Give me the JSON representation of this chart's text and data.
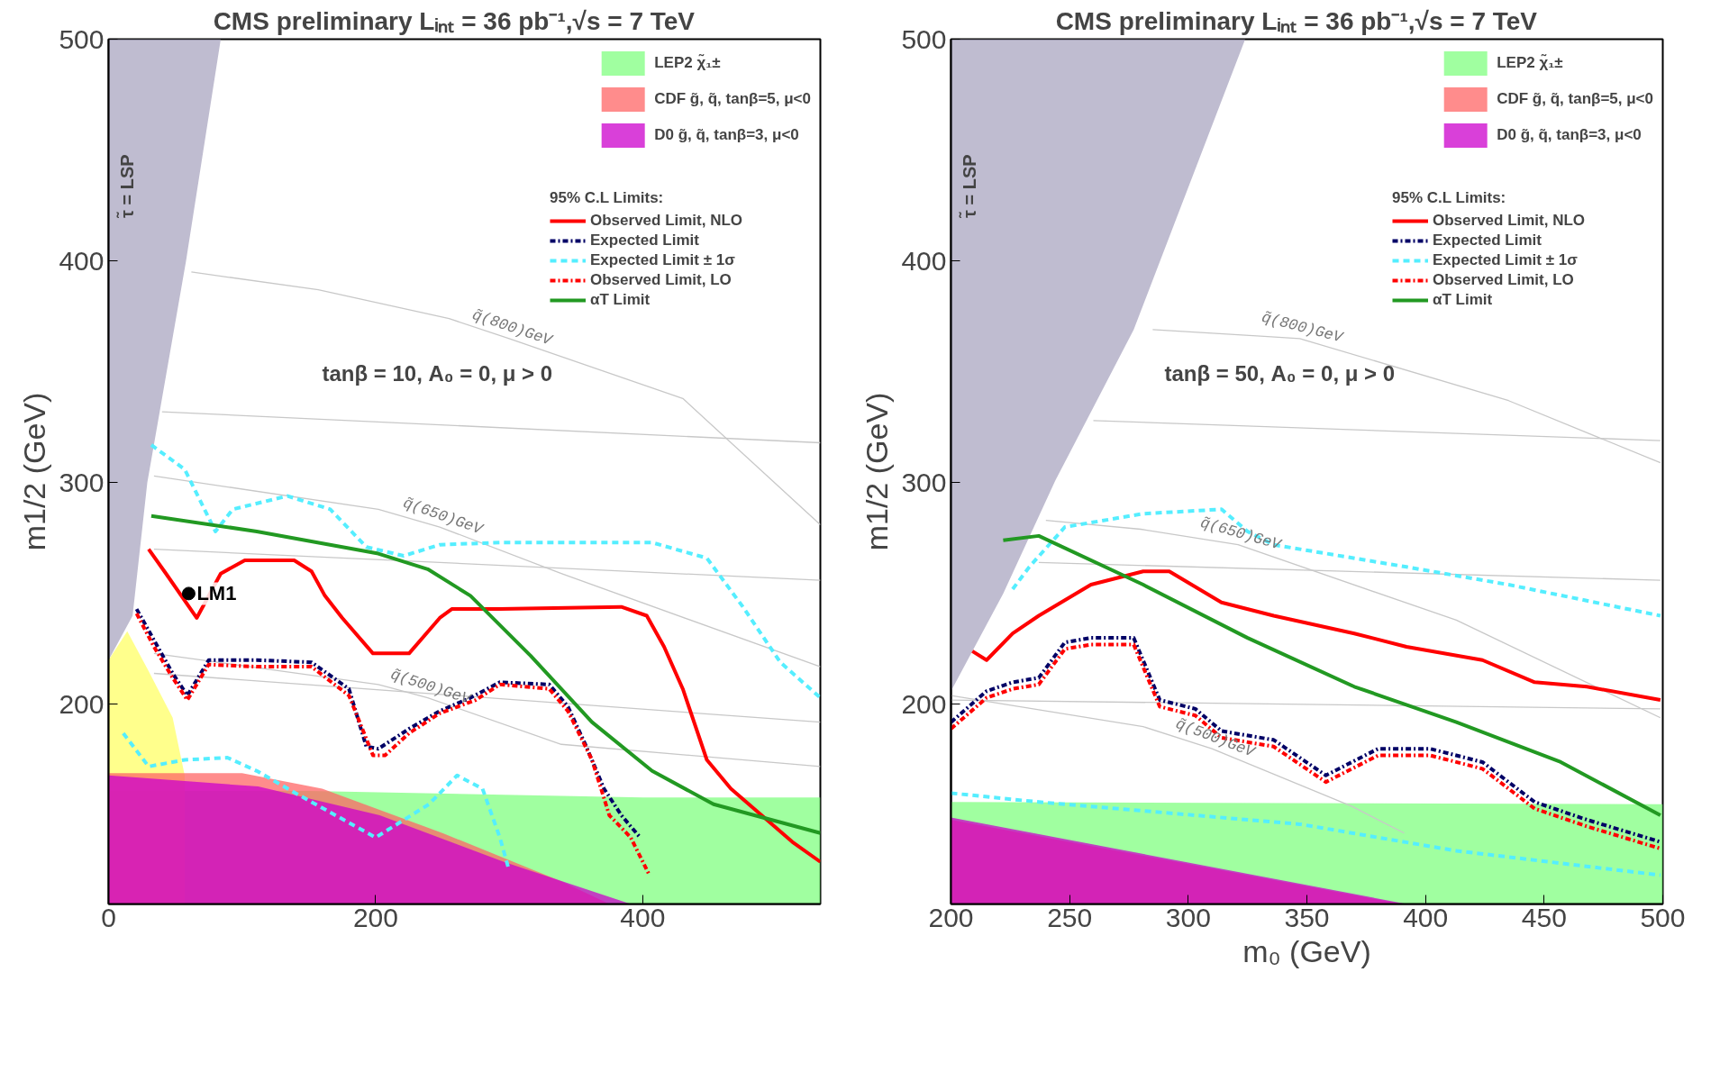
{
  "chart_data": [
    {
      "type": "line",
      "title": "CMS preliminary    Lᵢₙₜ = 36 pb⁻¹,√s = 7 TeV",
      "ylabel": "m1/2 (GeV)",
      "legend_title": "95% C.L Limits:",
      "xlim": [
        0,
        533
      ],
      "ylim": [
        110,
        500
      ],
      "xticks": [
        0,
        200,
        400
      ],
      "yticks": [
        200,
        300,
        400,
        500
      ],
      "legend": "top right",
      "annotations": [
        "tanβ = 10, A₀ = 0, μ > 0",
        "τ̃ = LSP"
      ],
      "series": [
        {
          "type": "area",
          "color": "#a9a6c0",
          "x": [
            0,
            0,
            18,
            29,
            58,
            84
          ],
          "values": [
            500,
            220,
            240,
            300,
            400,
            500
          ]
        },
        {
          "type": "area",
          "name": "LEP2 χ̃₁±",
          "color": "#80ff80",
          "x": [
            0,
            150,
            400,
            533
          ],
          "values": [
            161,
            161,
            158,
            158
          ]
        },
        {
          "type": "area",
          "color": "#ffff66",
          "x": [
            0,
            14,
            30,
            48,
            57
          ],
          "values": [
            220,
            233,
            215,
            194,
            168
          ]
        },
        {
          "type": "area",
          "name": "CDF g̃, q̃, tanβ=5, μ<0",
          "color": "#ff6666",
          "x": [
            0,
            100,
            160,
            250,
            340,
            375
          ],
          "values": [
            169,
            169,
            162,
            142,
            120,
            110
          ]
        },
        {
          "type": "area",
          "name": "D0 g̃, q̃, tanβ=3, μ<0",
          "color": "#cc00cc",
          "x": [
            0,
            112,
            203,
            296,
            391
          ],
          "values": [
            168,
            163,
            150,
            129,
            110
          ]
        },
        {
          "color": "#c8c8c8",
          "x": [
            40,
            533
          ],
          "values": [
            332,
            318
          ]
        },
        {
          "name": "q̃(800)GeV",
          "color": "#c8c8c8",
          "x": [
            62,
            157,
            255,
            300,
            430,
            533
          ],
          "values": [
            395,
            387,
            374,
            365,
            338,
            281
          ]
        },
        {
          "name": "q̃(650)GeV",
          "color": "#c8c8c8",
          "x": [
            34,
            202,
            248,
            339,
            533
          ],
          "values": [
            303,
            288,
            280,
            259,
            217
          ]
        },
        {
          "color": "#c8c8c8",
          "x": [
            34,
            533
          ],
          "values": [
            270,
            256
          ]
        },
        {
          "name": "q̃(500)GeV",
          "color": "#c8c8c8",
          "x": [
            34,
            202,
            239,
            339,
            533
          ],
          "values": [
            223,
            209,
            203,
            182,
            172
          ]
        },
        {
          "color": "#c8c8c8",
          "x": [
            34,
            533
          ],
          "values": [
            214,
            192
          ]
        },
        {
          "name": "Observed Limit, NLO",
          "color": "#ff0000",
          "line_style": "solid",
          "x": [
            30,
            43,
            66,
            84,
            102,
            139,
            152,
            162,
            175,
            198,
            225,
            248,
            257,
            293,
            384,
            403,
            416,
            430,
            448,
            466,
            489,
            512,
            533
          ],
          "values": [
            270,
            259,
            239,
            259,
            265,
            265,
            260,
            249,
            239,
            223,
            223,
            239,
            243,
            243,
            244,
            240,
            226,
            207,
            175,
            162,
            150,
            138,
            129
          ]
        },
        {
          "name": "Expected Limit",
          "color": "#000066",
          "line_style": "dotted",
          "x": [
            21,
            34,
            48,
            59,
            75,
            111,
            152,
            180,
            193,
            202,
            225,
            248,
            271,
            293,
            330,
            344,
            357,
            371,
            384,
            398
          ],
          "values": [
            243,
            229,
            214,
            204,
            220,
            220,
            219,
            207,
            181,
            180,
            189,
            197,
            203,
            210,
            209,
            199,
            182,
            162,
            150,
            140
          ]
        },
        {
          "name": "Expected Limit ± 1σ",
          "color": "#55eeff",
          "line_style": "dashed",
          "x": [
            32,
            57,
            80,
            93,
            134,
            166,
            193,
            221,
            248,
            293,
            407,
            448,
            475,
            503,
            533
          ],
          "values": [
            317,
            306,
            278,
            288,
            294,
            288,
            271,
            267,
            272,
            273,
            273,
            266,
            244,
            219,
            203
          ]
        },
        {
          "color": "#55eeff",
          "line_style": "dashed",
          "x": [
            11,
            30,
            57,
            89,
            111,
            140,
            200,
            240,
            261,
            280,
            293,
            300
          ],
          "values": [
            187,
            172,
            175,
            176,
            170,
            160,
            140,
            155,
            168,
            162,
            140,
            125
          ]
        },
        {
          "name": "Observed Limit, LO",
          "color": "#ff0000",
          "line_style": "dotted",
          "x": [
            21,
            34,
            48,
            59,
            75,
            111,
            152,
            180,
            198,
            207,
            225,
            248,
            275,
            293,
            330,
            344,
            362,
            375,
            391,
            405
          ],
          "values": [
            241,
            226,
            212,
            202,
            218,
            217,
            217,
            204,
            177,
            177,
            187,
            196,
            202,
            209,
            207,
            197,
            175,
            150,
            140,
            123
          ]
        },
        {
          "name": "αT Limit",
          "color": "#229922",
          "line_style": "solid",
          "x": [
            32,
            111,
            202,
            239,
            271,
            316,
            362,
            407,
            453,
            533
          ],
          "values": [
            285,
            278,
            268,
            261,
            249,
            222,
            192,
            170,
            155,
            142
          ]
        },
        {
          "type": "scatter",
          "name": "LM1",
          "color": "#000000",
          "marker": "circle",
          "x": [
            60
          ],
          "values": [
            250
          ]
        }
      ]
    },
    {
      "type": "line",
      "title": "CMS preliminary    Lᵢₙₜ = 36 pb⁻¹,√s = 7 TeV",
      "xlabel": "m₀ (GeV)",
      "ylabel": "m1/2 (GeV)",
      "legend_title": "95% C.L Limits:",
      "xlim": [
        200,
        500
      ],
      "ylim": [
        110,
        500
      ],
      "xticks": [
        200,
        250,
        300,
        350,
        400,
        450,
        500
      ],
      "yticks": [
        200,
        300,
        400,
        500
      ],
      "legend": "top right",
      "annotations": [
        "tanβ = 50, A₀ = 0, μ > 0",
        "τ̃ = LSP"
      ],
      "series": [
        {
          "type": "area",
          "color": "#a9a6c0",
          "x": [
            200,
            200,
            222,
            244,
            277,
            324
          ],
          "values": [
            500,
            206,
            250,
            301,
            369,
            500
          ]
        },
        {
          "type": "area",
          "name": "LEP2 χ̃₁±",
          "color": "#80ff80",
          "x": [
            200,
            500
          ],
          "values": [
            156,
            155
          ]
        },
        {
          "type": "area",
          "name": "CDF g̃, q̃, tanβ=5, μ<0",
          "color": "#ff6666",
          "x": [
            200,
            390
          ],
          "values": [
            148,
            110
          ]
        },
        {
          "type": "area",
          "name": "D0 g̃, q̃, tanβ=3, μ<0",
          "color": "#cc00cc",
          "x": [
            200,
            392
          ],
          "values": [
            149,
            110
          ]
        },
        {
          "name": "q̃(800)GeV",
          "color": "#c8c8c8",
          "x": [
            285,
            332,
            347,
            435,
            499
          ],
          "values": [
            369,
            366,
            365,
            337,
            309
          ]
        },
        {
          "color": "#c8c8c8",
          "x": [
            260,
            499
          ],
          "values": [
            328,
            319
          ]
        },
        {
          "color": "#c8c8c8",
          "x": [
            237,
            499
          ],
          "values": [
            264,
            256
          ]
        },
        {
          "name": "q̃(650)GeV",
          "color": "#c8c8c8",
          "x": [
            240,
            280,
            321,
            413,
            499
          ],
          "values": [
            283,
            279,
            272,
            238,
            194
          ]
        },
        {
          "color": "#c8c8c8",
          "x": [
            200,
            499
          ],
          "values": [
            202,
            198
          ]
        },
        {
          "name": "q̃(500)GeV",
          "color": "#c8c8c8",
          "x": [
            200,
            281,
            310,
            369,
            391
          ],
          "values": [
            204,
            190,
            180,
            154,
            142
          ]
        },
        {
          "name": "Observed Limit, NLO",
          "color": "#ff0000",
          "line_style": "solid",
          "x": [
            209,
            215,
            226,
            237,
            259,
            281,
            292,
            314,
            336,
            370,
            392,
            424,
            446,
            468,
            499
          ],
          "values": [
            224,
            220,
            232,
            240,
            254,
            260,
            260,
            246,
            240,
            232,
            226,
            220,
            210,
            208,
            202
          ]
        },
        {
          "name": "Expected Limit",
          "color": "#000066",
          "line_style": "dotted",
          "x": [
            200,
            215,
            226,
            237,
            248,
            259,
            277,
            288,
            303,
            314,
            336,
            358,
            380,
            402,
            424,
            446,
            468,
            499
          ],
          "values": [
            192,
            206,
            210,
            212,
            228,
            230,
            230,
            202,
            198,
            188,
            184,
            168,
            180,
            180,
            174,
            156,
            148,
            138
          ]
        },
        {
          "name": "Expected Limit ± 1σ",
          "color": "#55eeff",
          "line_style": "dashed",
          "x": [
            226,
            233,
            248,
            281,
            314,
            325,
            336,
            392,
            435,
            499
          ],
          "values": [
            252,
            262,
            280,
            286,
            288,
            278,
            272,
            262,
            254,
            240
          ]
        },
        {
          "color": "#55eeff",
          "line_style": "dashed",
          "x": [
            200,
            237,
            347,
            413,
            499
          ],
          "values": [
            160,
            156,
            146,
            134,
            123
          ]
        },
        {
          "name": "Observed Limit, LO",
          "color": "#ff0000",
          "line_style": "dotted",
          "x": [
            200,
            215,
            226,
            237,
            248,
            259,
            277,
            288,
            303,
            314,
            336,
            358,
            380,
            402,
            424,
            446,
            468,
            499
          ],
          "values": [
            189,
            203,
            207,
            209,
            225,
            227,
            227,
            199,
            195,
            185,
            181,
            165,
            177,
            177,
            171,
            153,
            145,
            135
          ]
        },
        {
          "name": "αT Limit",
          "color": "#229922",
          "line_style": "solid",
          "x": [
            222,
            237,
            281,
            325,
            370,
            413,
            457,
            499
          ],
          "values": [
            274,
            276,
            254,
            230,
            208,
            192,
            174,
            150
          ]
        }
      ]
    }
  ]
}
